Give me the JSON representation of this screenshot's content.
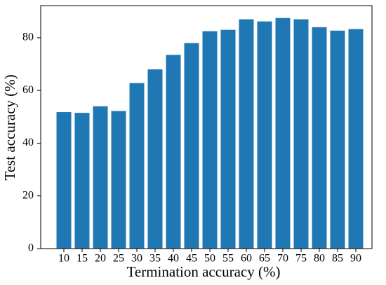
{
  "chart_data": {
    "type": "bar",
    "x_label": "Termination  accuracy (%)",
    "y_label": "Test accuracy (%)",
    "categories": [
      "10",
      "15",
      "20",
      "25",
      "30",
      "35",
      "40",
      "45",
      "50",
      "55",
      "60",
      "65",
      "70",
      "75",
      "80",
      "85",
      "90"
    ],
    "values": [
      51.8,
      51.5,
      54,
      52.2,
      62.8,
      68,
      73.5,
      78,
      82.5,
      83,
      87,
      86.2,
      87.5,
      87,
      84,
      82.7,
      83.3
    ],
    "color": "#1f77b4",
    "ylim": [
      0,
      92.2
    ],
    "yticks": [
      0,
      20,
      40,
      60,
      80
    ],
    "grid": false
  }
}
